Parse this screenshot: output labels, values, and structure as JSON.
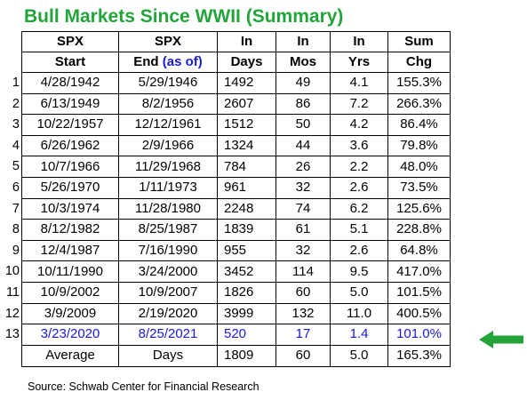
{
  "title": "Bull Markets Since WWII (Summary)",
  "header_top": [
    "SPX",
    "SPX",
    "In",
    "In",
    "In",
    "Sum"
  ],
  "header_bottom": {
    "start": "Start",
    "end_main": "End",
    "end_paren": "(as of)",
    "days": "Days",
    "mos": "Mos",
    "yrs": "Yrs",
    "chg": "Chg"
  },
  "rows": [
    {
      "n": "1",
      "start": "4/28/1942",
      "end": "5/29/1946",
      "days": "1492",
      "mos": "49",
      "yrs": "4.1",
      "chg": "155.3%"
    },
    {
      "n": "2",
      "start": "6/13/1949",
      "end": "8/2/1956",
      "days": "2607",
      "mos": "86",
      "yrs": "7.2",
      "chg": "266.3%"
    },
    {
      "n": "3",
      "start": "10/22/1957",
      "end": "12/12/1961",
      "days": "1512",
      "mos": "50",
      "yrs": "4.2",
      "chg": "86.4%"
    },
    {
      "n": "4",
      "start": "6/26/1962",
      "end": "2/9/1966",
      "days": "1324",
      "mos": "44",
      "yrs": "3.6",
      "chg": "79.8%"
    },
    {
      "n": "5",
      "start": "10/7/1966",
      "end": "11/29/1968",
      "days": "784",
      "mos": "26",
      "yrs": "2.2",
      "chg": "48.0%"
    },
    {
      "n": "6",
      "start": "5/26/1970",
      "end": "1/11/1973",
      "days": "961",
      "mos": "32",
      "yrs": "2.6",
      "chg": "73.5%"
    },
    {
      "n": "7",
      "start": "10/3/1974",
      "end": "11/28/1980",
      "days": "2248",
      "mos": "74",
      "yrs": "6.2",
      "chg": "125.6%"
    },
    {
      "n": "8",
      "start": "8/12/1982",
      "end": "8/25/1987",
      "days": "1839",
      "mos": "61",
      "yrs": "5.1",
      "chg": "228.8%"
    },
    {
      "n": "9",
      "start": "12/4/1987",
      "end": "7/16/1990",
      "days": "955",
      "mos": "32",
      "yrs": "2.6",
      "chg": "64.8%"
    },
    {
      "n": "10",
      "start": "10/11/1990",
      "end": "3/24/2000",
      "days": "3452",
      "mos": "114",
      "yrs": "9.5",
      "chg": "417.0%"
    },
    {
      "n": "11",
      "start": "10/9/2002",
      "end": "10/9/2007",
      "days": "1826",
      "mos": "60",
      "yrs": "5.0",
      "chg": "101.5%"
    },
    {
      "n": "12",
      "start": "3/9/2009",
      "end": "2/19/2020",
      "days": "3999",
      "mos": "132",
      "yrs": "11.0",
      "chg": "400.5%"
    },
    {
      "n": "13",
      "start": "3/23/2020",
      "end": "8/25/2021",
      "days": "520",
      "mos": "17",
      "yrs": "1.4",
      "chg": "101.0%"
    }
  ],
  "footer": {
    "label": "Average",
    "unit": "Days",
    "days": "1809",
    "mos": "60",
    "yrs": "5.0",
    "chg": "165.3%"
  },
  "source": "Source: Schwab Center for Financial Research",
  "colors": {
    "title": "#22a43a",
    "highlight_text": "#1a1ad6",
    "arrow": "#22a43a"
  },
  "icons": {
    "pointer": "left-arrow-icon"
  }
}
